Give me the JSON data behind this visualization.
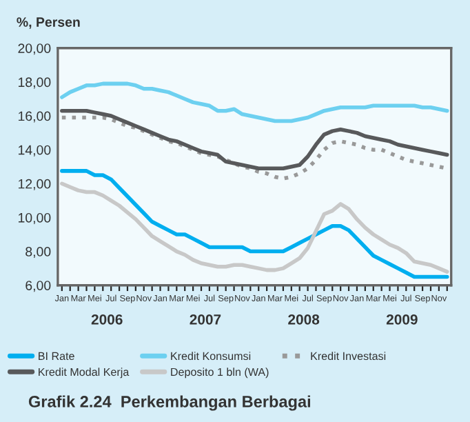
{
  "chart_data": {
    "type": "line",
    "title": "Grafik 2.24  Perkembangan Berbagai",
    "ylabel": "%, Persen",
    "categories": [
      "Jan",
      null,
      "Mar",
      null,
      "Mei",
      null,
      "Jul",
      null,
      "Sep",
      null,
      "Nov",
      null,
      "Jan",
      null,
      "Mar",
      null,
      "Mei",
      null,
      "Jul",
      null,
      "Sep",
      null,
      "Nov",
      null,
      "Jan",
      null,
      "Mar",
      null,
      "Mei",
      null,
      "Jul",
      null,
      "Sep",
      null,
      "Nov",
      null,
      "Jan",
      null,
      "Mar",
      null,
      "Mei",
      null,
      "Jul",
      null,
      "Sep",
      null,
      "Nov",
      null
    ],
    "annotations": [
      "2006",
      "2007",
      "2008",
      "2009"
    ],
    "ylim": [
      6,
      20
    ],
    "yticks": [
      {
        "value": 6,
        "label": "6,00"
      },
      {
        "value": 8,
        "label": "8,00"
      },
      {
        "value": 10,
        "label": "10,00"
      },
      {
        "value": 12,
        "label": "12,00"
      },
      {
        "value": 14,
        "label": "14,00"
      },
      {
        "value": 16,
        "label": "16,00"
      },
      {
        "value": 18,
        "label": "18,00"
      },
      {
        "value": 20,
        "label": "20,00"
      }
    ],
    "grid": false,
    "legend": "bottom",
    "marker": "none",
    "series": [
      {
        "name": "BI Rate",
        "color": "#00aeef",
        "line_style": "solid",
        "values": [
          12.75,
          12.75,
          12.75,
          12.75,
          12.5,
          12.5,
          12.25,
          11.75,
          11.25,
          10.75,
          10.25,
          9.75,
          9.5,
          9.25,
          9.0,
          9.0,
          8.75,
          8.5,
          8.25,
          8.25,
          8.25,
          8.25,
          8.25,
          8.0,
          8.0,
          8.0,
          8.0,
          8.0,
          8.25,
          8.5,
          8.75,
          9.0,
          9.25,
          9.5,
          9.5,
          9.25,
          8.75,
          8.25,
          7.75,
          7.5,
          7.25,
          7.0,
          6.75,
          6.5,
          6.5,
          6.5,
          6.5,
          6.5
        ]
      },
      {
        "name": "Kredit Konsumsi",
        "color": "#6dd0f0",
        "line_style": "solid",
        "values": [
          17.1,
          17.4,
          17.6,
          17.8,
          17.8,
          17.9,
          17.9,
          17.9,
          17.9,
          17.8,
          17.6,
          17.6,
          17.5,
          17.4,
          17.2,
          17.0,
          16.8,
          16.7,
          16.6,
          16.3,
          16.3,
          16.4,
          16.1,
          16.0,
          15.9,
          15.8,
          15.7,
          15.7,
          15.7,
          15.8,
          15.9,
          16.1,
          16.3,
          16.4,
          16.5,
          16.5,
          16.5,
          16.5,
          16.6,
          16.6,
          16.6,
          16.6,
          16.6,
          16.6,
          16.5,
          16.5,
          16.4,
          16.3
        ]
      },
      {
        "name": "Kredit Investasi",
        "color": "#999999",
        "line_style": "dotted",
        "values": [
          15.9,
          15.9,
          15.9,
          15.9,
          15.9,
          15.9,
          15.8,
          15.6,
          15.4,
          15.3,
          15.1,
          14.9,
          14.7,
          14.5,
          14.4,
          14.2,
          14.0,
          13.8,
          13.7,
          13.6,
          13.4,
          13.2,
          13.0,
          12.9,
          12.7,
          12.6,
          12.4,
          12.3,
          12.4,
          12.6,
          12.9,
          13.4,
          14.0,
          14.4,
          14.5,
          14.4,
          14.3,
          14.1,
          14.0,
          14.0,
          13.8,
          13.6,
          13.4,
          13.3,
          13.2,
          13.1,
          13.0,
          12.9
        ]
      },
      {
        "name": "Kredit Modal Kerja",
        "color": "#58595b",
        "line_style": "solid",
        "values": [
          16.3,
          16.3,
          16.3,
          16.3,
          16.2,
          16.1,
          16.0,
          15.8,
          15.6,
          15.4,
          15.2,
          15.0,
          14.8,
          14.6,
          14.5,
          14.3,
          14.1,
          13.9,
          13.8,
          13.7,
          13.3,
          13.2,
          13.1,
          13.0,
          12.9,
          12.9,
          12.9,
          12.9,
          13.0,
          13.1,
          13.6,
          14.3,
          14.9,
          15.1,
          15.2,
          15.1,
          15.0,
          14.8,
          14.7,
          14.6,
          14.5,
          14.3,
          14.2,
          14.1,
          14.0,
          13.9,
          13.8,
          13.7
        ]
      },
      {
        "name": "Deposito 1 bln (WA)",
        "color": "#c8c8c8",
        "line_style": "solid",
        "values": [
          12.0,
          11.8,
          11.6,
          11.5,
          11.5,
          11.3,
          11.0,
          10.7,
          10.3,
          9.9,
          9.4,
          8.9,
          8.6,
          8.3,
          8.0,
          7.8,
          7.5,
          7.3,
          7.2,
          7.1,
          7.1,
          7.2,
          7.2,
          7.1,
          7.0,
          6.9,
          6.9,
          7.0,
          7.3,
          7.6,
          8.2,
          9.2,
          10.2,
          10.4,
          10.8,
          10.5,
          9.9,
          9.4,
          9.0,
          8.7,
          8.4,
          8.2,
          7.9,
          7.4,
          7.3,
          7.2,
          7.0,
          6.8
        ]
      }
    ]
  }
}
